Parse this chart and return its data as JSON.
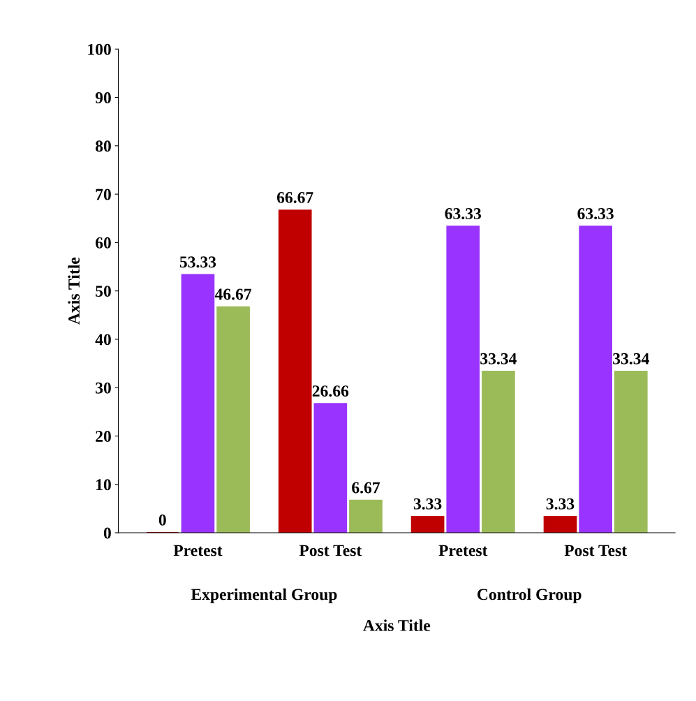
{
  "chart_data": {
    "type": "bar",
    "xlabel": "Axis Title",
    "ylabel": "Axis Title",
    "categories": [
      "Pretest",
      "Post Test",
      "Pretest",
      "Post Test"
    ],
    "series": [
      {
        "color": "#c00000",
        "values": [
          0,
          66.67,
          3.33,
          3.33
        ]
      },
      {
        "color": "#9933ff",
        "values": [
          53.33,
          26.66,
          63.33,
          63.33
        ]
      },
      {
        "color": "#9bbb59",
        "values": [
          46.67,
          6.67,
          33.34,
          33.34
        ]
      }
    ],
    "ylim": [
      0,
      100
    ],
    "yticks": [
      0,
      10,
      20,
      30,
      40,
      50,
      60,
      70,
      80,
      90,
      100
    ],
    "data_labels": true,
    "grid": false,
    "legend": false,
    "annotations": [
      "Experimental Group",
      "Control Group"
    ]
  }
}
